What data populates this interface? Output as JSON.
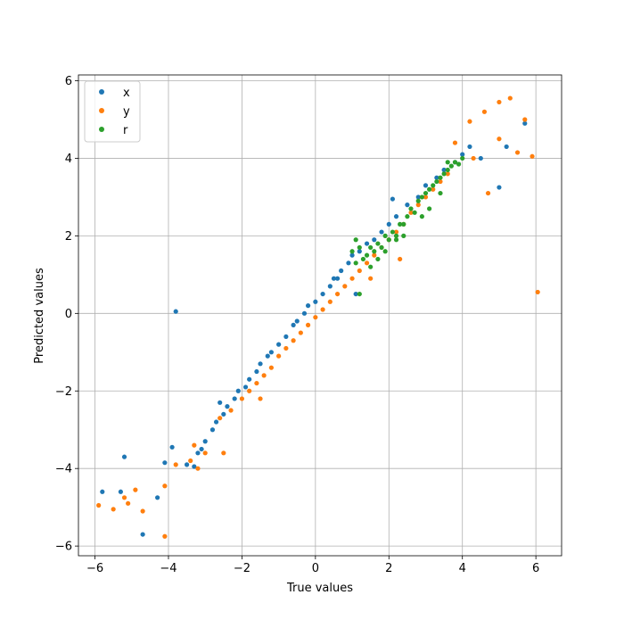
{
  "chart_data": {
    "type": "scatter",
    "title": "",
    "xlabel": "True values",
    "ylabel": "Predicted values",
    "xlim": [
      -6.45,
      6.7
    ],
    "ylim": [
      -6.25,
      6.15
    ],
    "xticks": [
      -6,
      -4,
      -2,
      0,
      2,
      4,
      6
    ],
    "yticks": [
      -6,
      -4,
      -2,
      0,
      2,
      4,
      6
    ],
    "grid": true,
    "legend_position": "top-left",
    "series": [
      {
        "name": "x",
        "color": "#1f77b4",
        "points": [
          [
            -3.8,
            0.05
          ],
          [
            -5.2,
            -3.7
          ],
          [
            -4.7,
            -5.7
          ],
          [
            -5.8,
            -4.6
          ],
          [
            -5.3,
            -4.6
          ],
          [
            -4.3,
            -4.75
          ],
          [
            -4.1,
            -3.85
          ],
          [
            -3.9,
            -3.45
          ],
          [
            -3.5,
            -3.9
          ],
          [
            -3.3,
            -3.95
          ],
          [
            -3.1,
            -3.5
          ],
          [
            -3.0,
            -3.3
          ],
          [
            -2.8,
            -3.0
          ],
          [
            -2.7,
            -2.8
          ],
          [
            -2.5,
            -2.6
          ],
          [
            -2.4,
            -2.4
          ],
          [
            -2.2,
            -2.2
          ],
          [
            -2.1,
            -2.0
          ],
          [
            -1.9,
            -1.9
          ],
          [
            -1.8,
            -1.7
          ],
          [
            -1.6,
            -1.5
          ],
          [
            -1.5,
            -1.3
          ],
          [
            -1.3,
            -1.1
          ],
          [
            -1.2,
            -1.0
          ],
          [
            -1.0,
            -0.8
          ],
          [
            -0.8,
            -0.6
          ],
          [
            -0.6,
            -0.3
          ],
          [
            -0.5,
            -0.2
          ],
          [
            -0.3,
            0.0
          ],
          [
            -0.2,
            0.2
          ],
          [
            0.0,
            0.3
          ],
          [
            0.2,
            0.5
          ],
          [
            0.4,
            0.7
          ],
          [
            0.5,
            0.9
          ],
          [
            0.7,
            1.1
          ],
          [
            0.9,
            1.3
          ],
          [
            1.0,
            1.5
          ],
          [
            1.2,
            1.6
          ],
          [
            1.4,
            1.8
          ],
          [
            1.6,
            1.9
          ],
          [
            1.8,
            2.1
          ],
          [
            2.0,
            2.3
          ],
          [
            2.2,
            2.5
          ],
          [
            2.5,
            2.8
          ],
          [
            2.8,
            3.0
          ],
          [
            3.0,
            3.3
          ],
          [
            3.3,
            3.5
          ],
          [
            3.5,
            3.7
          ],
          [
            3.8,
            3.9
          ],
          [
            4.0,
            4.1
          ],
          [
            4.2,
            4.3
          ],
          [
            4.5,
            4.0
          ],
          [
            5.0,
            3.25
          ],
          [
            5.2,
            4.3
          ],
          [
            5.7,
            4.9
          ],
          [
            2.1,
            2.95
          ],
          [
            1.1,
            0.5
          ],
          [
            0.6,
            0.9
          ],
          [
            -2.6,
            -2.3
          ],
          [
            -3.2,
            -3.6
          ]
        ]
      },
      {
        "name": "y",
        "color": "#ff7f0e",
        "points": [
          [
            -5.9,
            -4.95
          ],
          [
            -5.5,
            -5.05
          ],
          [
            -5.2,
            -4.75
          ],
          [
            -4.9,
            -4.55
          ],
          [
            -4.7,
            -5.1
          ],
          [
            -5.1,
            -4.9
          ],
          [
            -4.1,
            -4.45
          ],
          [
            -4.1,
            -5.75
          ],
          [
            -3.8,
            -3.9
          ],
          [
            -3.4,
            -3.8
          ],
          [
            -3.2,
            -4.0
          ],
          [
            -3.0,
            -3.6
          ],
          [
            -2.5,
            -3.6
          ],
          [
            -2.6,
            -2.7
          ],
          [
            -2.3,
            -2.5
          ],
          [
            -2.0,
            -2.2
          ],
          [
            -1.8,
            -2.0
          ],
          [
            -1.6,
            -1.8
          ],
          [
            -1.4,
            -1.6
          ],
          [
            -1.2,
            -1.4
          ],
          [
            -1.0,
            -1.1
          ],
          [
            -0.8,
            -0.9
          ],
          [
            -0.6,
            -0.7
          ],
          [
            -0.4,
            -0.5
          ],
          [
            -0.2,
            -0.3
          ],
          [
            0.0,
            -0.1
          ],
          [
            0.2,
            0.1
          ],
          [
            0.4,
            0.3
          ],
          [
            0.6,
            0.5
          ],
          [
            0.8,
            0.7
          ],
          [
            1.0,
            0.9
          ],
          [
            1.2,
            1.1
          ],
          [
            1.4,
            1.3
          ],
          [
            1.6,
            1.5
          ],
          [
            1.8,
            1.7
          ],
          [
            2.0,
            1.9
          ],
          [
            2.2,
            2.1
          ],
          [
            2.4,
            2.3
          ],
          [
            2.6,
            2.6
          ],
          [
            2.8,
            2.8
          ],
          [
            3.0,
            3.0
          ],
          [
            3.2,
            3.2
          ],
          [
            3.4,
            3.4
          ],
          [
            3.6,
            3.6
          ],
          [
            3.8,
            4.4
          ],
          [
            4.2,
            4.95
          ],
          [
            4.6,
            5.2
          ],
          [
            5.0,
            5.45
          ],
          [
            5.3,
            5.55
          ],
          [
            5.7,
            5.0
          ],
          [
            5.9,
            4.05
          ],
          [
            6.05,
            0.55
          ],
          [
            5.5,
            4.15
          ],
          [
            5.0,
            4.5
          ],
          [
            4.7,
            3.1
          ],
          [
            4.3,
            4.0
          ],
          [
            2.3,
            1.4
          ],
          [
            1.5,
            0.9
          ],
          [
            -1.5,
            -2.2
          ],
          [
            -3.3,
            -3.4
          ]
        ]
      },
      {
        "name": "r",
        "color": "#2ca02c",
        "points": [
          [
            1.0,
            1.6
          ],
          [
            1.1,
            1.3
          ],
          [
            1.2,
            1.7
          ],
          [
            1.3,
            1.4
          ],
          [
            1.4,
            1.5
          ],
          [
            1.5,
            1.7
          ],
          [
            1.6,
            1.6
          ],
          [
            1.7,
            1.8
          ],
          [
            1.8,
            1.7
          ],
          [
            1.9,
            2.0
          ],
          [
            2.0,
            1.9
          ],
          [
            2.1,
            2.1
          ],
          [
            2.2,
            2.0
          ],
          [
            2.3,
            2.3
          ],
          [
            2.4,
            2.3
          ],
          [
            2.5,
            2.5
          ],
          [
            2.6,
            2.7
          ],
          [
            2.7,
            2.6
          ],
          [
            2.8,
            2.9
          ],
          [
            2.9,
            3.0
          ],
          [
            3.0,
            3.1
          ],
          [
            3.1,
            3.2
          ],
          [
            3.2,
            3.3
          ],
          [
            3.3,
            3.4
          ],
          [
            3.4,
            3.5
          ],
          [
            3.5,
            3.6
          ],
          [
            3.6,
            3.7
          ],
          [
            3.7,
            3.8
          ],
          [
            3.8,
            3.9
          ],
          [
            3.9,
            3.85
          ],
          [
            4.0,
            4.0
          ],
          [
            3.1,
            2.7
          ],
          [
            2.4,
            2.0
          ],
          [
            1.9,
            1.6
          ],
          [
            1.2,
            0.5
          ],
          [
            2.9,
            2.5
          ],
          [
            3.4,
            3.1
          ],
          [
            1.5,
            1.2
          ],
          [
            2.2,
            1.9
          ],
          [
            3.6,
            3.9
          ],
          [
            1.1,
            1.9
          ],
          [
            1.7,
            1.4
          ]
        ]
      }
    ]
  }
}
